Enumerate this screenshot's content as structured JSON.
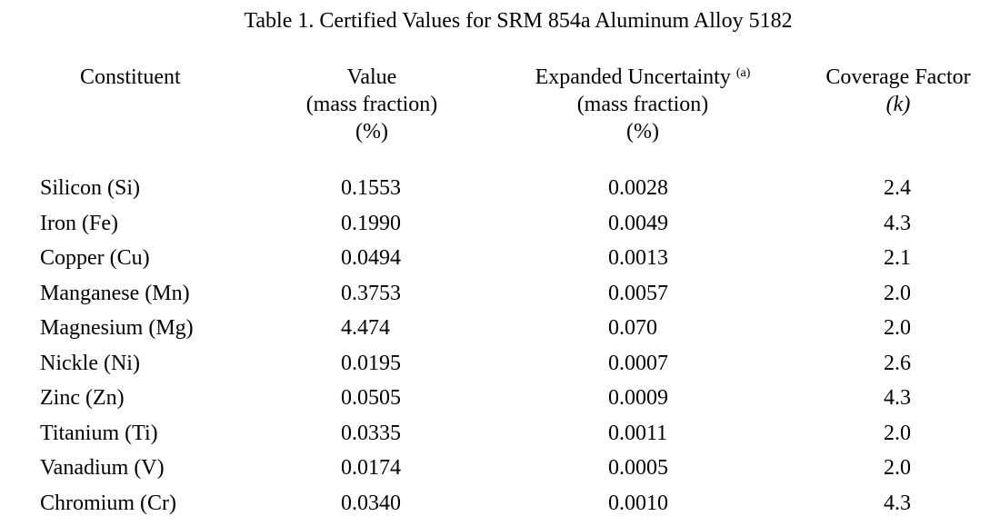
{
  "title": "Table 1.  Certified Values for SRM 854a Aluminum Alloy 5182",
  "headers": {
    "constituent": "Constituent",
    "value": {
      "line1": "Value",
      "line2": "(mass fraction)",
      "line3": "(%)"
    },
    "uncertainty": {
      "line1": "Expanded Uncertainty",
      "note": "(a)",
      "line2": "(mass fraction)",
      "line3": "(%)"
    },
    "coverage": {
      "line1": "Coverage Factor",
      "line2": "(k)"
    }
  },
  "rows": [
    {
      "constituent": "Silicon (Si)",
      "value": "0.1553",
      "uncertainty": "0.0028",
      "k": "2.4"
    },
    {
      "constituent": "Iron (Fe)",
      "value": "0.1990",
      "uncertainty": "0.0049",
      "k": "4.3"
    },
    {
      "constituent": "Copper (Cu)",
      "value": "0.0494",
      "uncertainty": "0.0013",
      "k": "2.1"
    },
    {
      "constituent": "Manganese (Mn)",
      "value": "0.3753",
      "uncertainty": "0.0057",
      "k": "2.0"
    },
    {
      "constituent": "Magnesium (Mg)",
      "value": "4.474",
      "uncertainty": "0.070",
      "k": "2.0"
    },
    {
      "constituent": "Nickle (Ni)",
      "value": "0.0195",
      "uncertainty": "0.0007",
      "k": "2.6"
    },
    {
      "constituent": "Zinc (Zn)",
      "value": "0.0505",
      "uncertainty": "0.0009",
      "k": "4.3"
    },
    {
      "constituent": "Titanium (Ti)",
      "value": "0.0335",
      "uncertainty": "0.0011",
      "k": "2.0"
    },
    {
      "constituent": "Vanadium (V)",
      "value": "0.0174",
      "uncertainty": "0.0005",
      "k": "2.0"
    },
    {
      "constituent": "Chromium (Cr)",
      "value": "0.0340",
      "uncertainty": "0.0010",
      "k": "4.3"
    }
  ]
}
